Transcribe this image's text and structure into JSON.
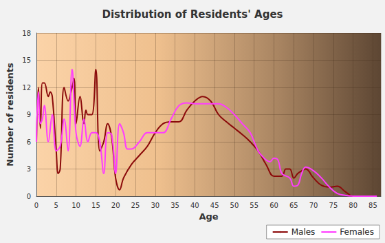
{
  "chart_data": {
    "type": "line",
    "title": "Distribution of Residents' Ages",
    "x_label": "Age",
    "y_label": "Number of residents",
    "xlim": [
      0,
      87
    ],
    "xticks": [
      0,
      5,
      10,
      15,
      20,
      25,
      30,
      35,
      40,
      45,
      50,
      55,
      60,
      65,
      70,
      75,
      80,
      85
    ],
    "ylim": [
      0,
      18
    ],
    "yticks": [
      0,
      3,
      6,
      9,
      12,
      15,
      18
    ],
    "grid": true,
    "legend": "lower right",
    "series": [
      {
        "name": "Males",
        "color": "#8b0a0a",
        "line_style": "solid",
        "x": [
          0,
          0.5,
          1,
          1.5,
          2,
          3,
          3.5,
          4,
          5,
          5.5,
          6,
          7,
          8,
          9,
          9.5,
          10,
          11,
          12,
          12.5,
          13,
          14,
          15,
          16,
          17,
          18,
          19,
          20,
          21,
          22,
          24,
          26,
          28,
          30,
          32,
          34,
          36,
          38,
          40,
          42,
          44,
          46,
          48,
          50,
          52,
          54,
          56,
          58,
          60,
          62,
          63,
          64,
          65,
          66,
          67,
          68,
          70,
          72,
          74,
          76,
          78,
          80,
          82,
          86
        ],
        "values": [
          6,
          12,
          7.5,
          12.5,
          12.5,
          11,
          11.5,
          11,
          5,
          2.5,
          3,
          12,
          10.5,
          12,
          13,
          8,
          11,
          8,
          9.5,
          9,
          9,
          14,
          5,
          6,
          8,
          6.5,
          2,
          0.7,
          2,
          3.5,
          4.5,
          5.5,
          7,
          8,
          8.2,
          8.2,
          9.5,
          10.5,
          11,
          10.5,
          9,
          8.2,
          7.5,
          6.8,
          6,
          5,
          3.5,
          2.2,
          2.2,
          3,
          3,
          2,
          2.5,
          2.8,
          3,
          2,
          1.2,
          1,
          1.1,
          0.5,
          0,
          0,
          0
        ]
      },
      {
        "name": "Females",
        "color": "#ff3cff",
        "line_style": "solid",
        "x": [
          0,
          0.5,
          1,
          1.5,
          2,
          3,
          4,
          5,
          6,
          7,
          8,
          9,
          10,
          11,
          12,
          13,
          14,
          15,
          16,
          17,
          18,
          19,
          20,
          21,
          22,
          23,
          24,
          26,
          28,
          30,
          32,
          34,
          36,
          38,
          40,
          42,
          44,
          46,
          48,
          50,
          52,
          54,
          56,
          58,
          59,
          60,
          61,
          62,
          64,
          65,
          66,
          67,
          68,
          70,
          72,
          74,
          76,
          78,
          80,
          86
        ],
        "values": [
          6,
          11.5,
          8,
          8.5,
          10,
          6,
          9,
          5,
          5.5,
          8.5,
          5,
          14,
          7,
          5.5,
          8.5,
          6,
          7,
          7,
          6,
          2.5,
          7,
          6.8,
          2.5,
          8,
          7,
          5.2,
          5.2,
          6,
          7,
          7,
          7,
          8.5,
          10,
          10.3,
          10.2,
          10.2,
          10.2,
          10.2,
          9.8,
          9,
          8,
          7,
          5,
          4,
          3.8,
          4.2,
          4,
          2.5,
          2,
          1.1,
          1.2,
          2.5,
          3.2,
          2.8,
          2,
          1,
          0.3,
          0.1,
          0,
          0
        ]
      }
    ]
  }
}
